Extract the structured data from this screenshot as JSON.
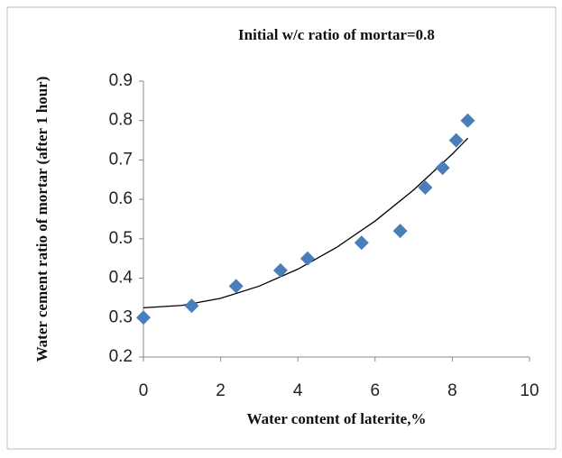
{
  "chart_data": {
    "type": "scatter",
    "title": "Initial w/c ratio of mortar=0.8",
    "x_label": "Water content of laterite,%",
    "y_label": "Water cement ratio of mortar (after 1 hour)",
    "x": [
      0,
      1.25,
      2.4,
      3.55,
      4.25,
      5.65,
      6.65,
      7.3,
      7.75,
      8.1,
      8.4
    ],
    "values": [
      0.3,
      0.33,
      0.38,
      0.42,
      0.45,
      0.49,
      0.52,
      0.63,
      0.68,
      0.75,
      0.8
    ],
    "color": "#4a7ebb",
    "trendline": {
      "x": [
        0,
        1,
        2,
        3,
        4,
        5,
        6,
        7,
        8,
        8.4
      ],
      "values": [
        0.325,
        0.331,
        0.349,
        0.38,
        0.423,
        0.478,
        0.545,
        0.624,
        0.715,
        0.755
      ],
      "color": "#000000"
    },
    "xlim": [
      0,
      10
    ],
    "xticks": [
      0,
      2,
      4,
      6,
      8,
      10
    ],
    "ylim": [
      0.2,
      0.9
    ],
    "yticks": [
      0.2,
      0.3,
      0.4,
      0.5,
      0.6,
      0.7,
      0.8,
      0.9
    ],
    "grid": false
  }
}
